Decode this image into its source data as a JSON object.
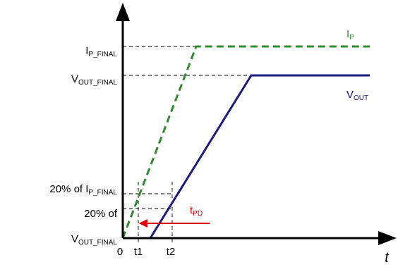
{
  "axes": {
    "x_label": "t",
    "origin_label": "0",
    "t1_label": "t1",
    "t2_label": "t2"
  },
  "y_labels": {
    "ip_final": {
      "main": "I",
      "sub": "P_FINAL"
    },
    "vout_final": {
      "main": "V",
      "sub": "OUT_FINAL"
    },
    "ip20": {
      "prefix": "20% of I",
      "sub": "P_FINAL"
    },
    "vout20_line1": "20% of",
    "vout20_line2": {
      "main": "V",
      "sub": "OUT_FINAL"
    }
  },
  "curves": {
    "ip": {
      "main": "I",
      "sub": "P",
      "color": "#2e8b2e"
    },
    "vout": {
      "main": "V",
      "sub": "OUT",
      "color": "#1a1a80"
    }
  },
  "delay": {
    "main": "t",
    "sub": "PD",
    "color": "#e00000"
  }
}
